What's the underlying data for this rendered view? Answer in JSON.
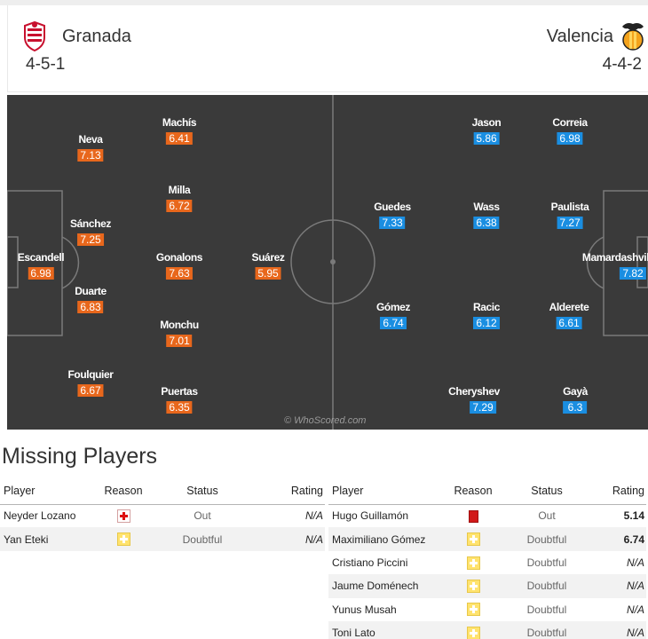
{
  "match": {
    "home": {
      "name": "Granada",
      "formation": "4-5-1",
      "crest_icon": "granada-crest-icon"
    },
    "away": {
      "name": "Valencia",
      "formation": "4-4-2",
      "crest_icon": "valencia-bat-crest-icon"
    }
  },
  "pitch": {
    "watermark": "© WhoScored.com",
    "home_players": [
      {
        "name": "Escandell",
        "rating": "6.98"
      },
      {
        "name": "Neva",
        "rating": "7.13"
      },
      {
        "name": "Sánchez",
        "rating": "7.25"
      },
      {
        "name": "Duarte",
        "rating": "6.83"
      },
      {
        "name": "Foulquier",
        "rating": "6.67"
      },
      {
        "name": "Machís",
        "rating": "6.41"
      },
      {
        "name": "Milla",
        "rating": "6.72"
      },
      {
        "name": "Gonalons",
        "rating": "7.63"
      },
      {
        "name": "Monchu",
        "rating": "7.01"
      },
      {
        "name": "Puertas",
        "rating": "6.35"
      },
      {
        "name": "Suárez",
        "rating": "5.95"
      }
    ],
    "away_players": [
      {
        "name": "Jason",
        "rating": "5.86"
      },
      {
        "name": "Correia",
        "rating": "6.98"
      },
      {
        "name": "Guedes",
        "rating": "7.33"
      },
      {
        "name": "Wass",
        "rating": "6.38"
      },
      {
        "name": "Paulista",
        "rating": "7.27"
      },
      {
        "name": "Mamardashvili",
        "rating": "7.82"
      },
      {
        "name": "Gómez",
        "rating": "6.74"
      },
      {
        "name": "Racic",
        "rating": "6.12"
      },
      {
        "name": "Alderete",
        "rating": "6.61"
      },
      {
        "name": "Cheryshev",
        "rating": "7.29"
      },
      {
        "name": "Gayà",
        "rating": "6.3"
      }
    ]
  },
  "missing": {
    "title": "Missing Players",
    "columns": {
      "player": "Player",
      "reason": "Reason",
      "status": "Status",
      "rating": "Rating"
    },
    "home": [
      {
        "player": "Neyder Lozano",
        "reason": "injury",
        "status": "Out",
        "rating": "N/A"
      },
      {
        "player": "Yan Eteki",
        "reason": "doubtful",
        "status": "Doubtful",
        "rating": "N/A"
      }
    ],
    "away": [
      {
        "player": "Hugo Guillamón",
        "reason": "red-card",
        "status": "Out",
        "rating": "5.14"
      },
      {
        "player": "Maximiliano Gómez",
        "reason": "doubtful",
        "status": "Doubtful",
        "rating": "6.74"
      },
      {
        "player": "Cristiano Piccini",
        "reason": "doubtful",
        "status": "Doubtful",
        "rating": "N/A"
      },
      {
        "player": "Jaume Doménech",
        "reason": "doubtful",
        "status": "Doubtful",
        "rating": "N/A"
      },
      {
        "player": "Yunus Musah",
        "reason": "doubtful",
        "status": "Doubtful",
        "rating": "N/A"
      },
      {
        "player": "Toni Lato",
        "reason": "doubtful",
        "status": "Doubtful",
        "rating": "N/A"
      }
    ]
  },
  "colors": {
    "home_rating": "#e8671c",
    "away_rating": "#1a8ee1",
    "pitch": "#3a3a3a"
  }
}
